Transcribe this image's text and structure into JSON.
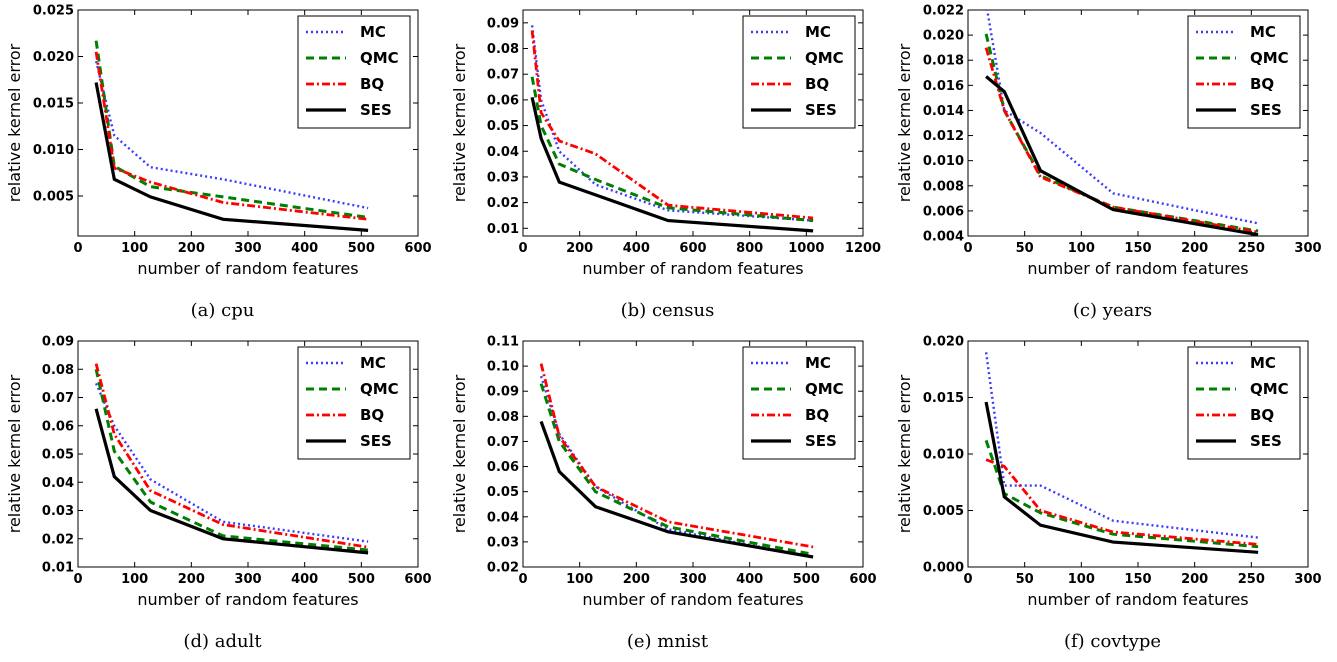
{
  "chart_data": [
    {
      "type": "line",
      "caption": "(a) cpu",
      "xlabel": "number of random features",
      "ylabel": "relative kernel error",
      "xlim": [
        0,
        600
      ],
      "ylim": [
        0.0007,
        0.025
      ],
      "xticks": [
        0,
        100,
        200,
        300,
        400,
        500,
        600
      ],
      "yticks": [
        0.005,
        0.01,
        0.015,
        0.02,
        0.025
      ],
      "ytick_labels": [
        "0.005",
        "0.010",
        "0.015",
        "0.020",
        "0.025"
      ],
      "legend": "top-right",
      "series": [
        {
          "name": "MC",
          "x": [
            32,
            64,
            128,
            256,
            512
          ],
          "values": [
            0.0195,
            0.0115,
            0.0081,
            0.0068,
            0.0037
          ]
        },
        {
          "name": "QMC",
          "x": [
            32,
            64,
            128,
            256,
            512
          ],
          "values": [
            0.0217,
            0.0082,
            0.006,
            0.0049,
            0.0027
          ]
        },
        {
          "name": "BQ",
          "x": [
            32,
            64,
            128,
            256,
            512
          ],
          "values": [
            0.0205,
            0.008,
            0.0065,
            0.0043,
            0.0025
          ]
        },
        {
          "name": "SES",
          "x": [
            32,
            64,
            128,
            256,
            512
          ],
          "values": [
            0.0172,
            0.0068,
            0.0049,
            0.0025,
            0.0013
          ]
        }
      ]
    },
    {
      "type": "line",
      "caption": "(b) census",
      "xlabel": "number of random features",
      "ylabel": "relative kernel error",
      "xlim": [
        0,
        1200
      ],
      "ylim": [
        0.007,
        0.095
      ],
      "xticks": [
        0,
        200,
        400,
        600,
        800,
        1000,
        1200
      ],
      "yticks": [
        0.01,
        0.02,
        0.03,
        0.04,
        0.05,
        0.06,
        0.07,
        0.08,
        0.09
      ],
      "ytick_labels": [
        "0.01",
        "0.02",
        "0.03",
        "0.04",
        "0.05",
        "0.06",
        "0.07",
        "0.08",
        "0.09"
      ],
      "legend": "top-right",
      "series": [
        {
          "name": "MC",
          "x": [
            32,
            64,
            128,
            256,
            512,
            1024
          ],
          "values": [
            0.089,
            0.06,
            0.04,
            0.027,
            0.017,
            0.013
          ]
        },
        {
          "name": "QMC",
          "x": [
            32,
            64,
            128,
            256,
            512,
            1024
          ],
          "values": [
            0.069,
            0.05,
            0.035,
            0.029,
            0.018,
            0.013
          ]
        },
        {
          "name": "BQ",
          "x": [
            32,
            64,
            128,
            256,
            512,
            1024
          ],
          "values": [
            0.087,
            0.055,
            0.044,
            0.039,
            0.019,
            0.014
          ]
        },
        {
          "name": "SES",
          "x": [
            32,
            64,
            128,
            256,
            512,
            1024
          ],
          "values": [
            0.061,
            0.045,
            0.028,
            0.023,
            0.013,
            0.009
          ]
        }
      ]
    },
    {
      "type": "line",
      "caption": "(c) years",
      "xlabel": "number of random features",
      "ylabel": "relative kernel error",
      "xlim": [
        0,
        300
      ],
      "ylim": [
        0.004,
        0.022
      ],
      "xticks": [
        0,
        50,
        100,
        150,
        200,
        250,
        300
      ],
      "yticks": [
        0.004,
        0.006,
        0.008,
        0.01,
        0.012,
        0.014,
        0.016,
        0.018,
        0.02,
        0.022
      ],
      "ytick_labels": [
        "0.004",
        "0.006",
        "0.008",
        "0.010",
        "0.012",
        "0.014",
        "0.016",
        "0.018",
        "0.020",
        "0.022"
      ],
      "legend": "top-right",
      "series": [
        {
          "name": "MC",
          "x": [
            16,
            32,
            64,
            128,
            256
          ],
          "values": [
            0.0225,
            0.014,
            0.0122,
            0.0074,
            0.005
          ]
        },
        {
          "name": "QMC",
          "x": [
            16,
            32,
            64,
            128,
            256
          ],
          "values": [
            0.0201,
            0.014,
            0.0088,
            0.0063,
            0.0044
          ]
        },
        {
          "name": "BQ",
          "x": [
            16,
            32,
            64,
            128,
            256
          ],
          "values": [
            0.019,
            0.014,
            0.0087,
            0.0063,
            0.0043
          ]
        },
        {
          "name": "SES",
          "x": [
            16,
            32,
            64,
            128,
            256
          ],
          "values": [
            0.0167,
            0.0155,
            0.0092,
            0.0061,
            0.0041
          ]
        }
      ]
    },
    {
      "type": "line",
      "caption": "(d) adult",
      "xlabel": "number of random features",
      "ylabel": "relative kernel error",
      "xlim": [
        0,
        600
      ],
      "ylim": [
        0.01,
        0.09
      ],
      "xticks": [
        0,
        100,
        200,
        300,
        400,
        500,
        600
      ],
      "yticks": [
        0.01,
        0.02,
        0.03,
        0.04,
        0.05,
        0.06,
        0.07,
        0.08,
        0.09
      ],
      "ytick_labels": [
        "0.01",
        "0.02",
        "0.03",
        "0.04",
        "0.05",
        "0.06",
        "0.07",
        "0.08",
        "0.09"
      ],
      "legend": "top-right",
      "series": [
        {
          "name": "MC",
          "x": [
            32,
            64,
            128,
            256,
            512
          ],
          "values": [
            0.075,
            0.06,
            0.041,
            0.026,
            0.019
          ]
        },
        {
          "name": "QMC",
          "x": [
            32,
            64,
            128,
            256,
            512
          ],
          "values": [
            0.08,
            0.051,
            0.033,
            0.021,
            0.016
          ]
        },
        {
          "name": "BQ",
          "x": [
            32,
            64,
            128,
            256,
            512
          ],
          "values": [
            0.082,
            0.057,
            0.037,
            0.025,
            0.017
          ]
        },
        {
          "name": "SES",
          "x": [
            32,
            64,
            128,
            256,
            512
          ],
          "values": [
            0.066,
            0.042,
            0.03,
            0.02,
            0.015
          ]
        }
      ]
    },
    {
      "type": "line",
      "caption": "(e) mnist",
      "xlabel": "number of random features",
      "ylabel": "relative kernel error",
      "xlim": [
        0,
        600
      ],
      "ylim": [
        0.02,
        0.11
      ],
      "xticks": [
        0,
        100,
        200,
        300,
        400,
        500,
        600
      ],
      "yticks": [
        0.02,
        0.03,
        0.04,
        0.05,
        0.06,
        0.07,
        0.08,
        0.09,
        0.1,
        0.11
      ],
      "ytick_labels": [
        "0.02",
        "0.03",
        "0.04",
        "0.05",
        "0.06",
        "0.07",
        "0.08",
        "0.09",
        "0.10",
        "0.11"
      ],
      "legend": "top-right",
      "series": [
        {
          "name": "MC",
          "x": [
            32,
            64,
            128,
            256,
            512
          ],
          "values": [
            0.096,
            0.073,
            0.052,
            0.035,
            0.024
          ]
        },
        {
          "name": "QMC",
          "x": [
            32,
            64,
            128,
            256,
            512
          ],
          "values": [
            0.093,
            0.07,
            0.05,
            0.036,
            0.025
          ]
        },
        {
          "name": "BQ",
          "x": [
            32,
            64,
            128,
            256,
            512
          ],
          "values": [
            0.101,
            0.072,
            0.052,
            0.038,
            0.028
          ]
        },
        {
          "name": "SES",
          "x": [
            32,
            64,
            128,
            256,
            512
          ],
          "values": [
            0.078,
            0.058,
            0.044,
            0.034,
            0.024
          ]
        }
      ]
    },
    {
      "type": "line",
      "caption": "(f) covtype",
      "xlabel": "number of random features",
      "ylabel": "relative kernel error",
      "xlim": [
        0,
        300
      ],
      "ylim": [
        0.0,
        0.02
      ],
      "xticks": [
        0,
        50,
        100,
        150,
        200,
        250,
        300
      ],
      "yticks": [
        0.0,
        0.005,
        0.01,
        0.015,
        0.02
      ],
      "ytick_labels": [
        "0.000",
        "0.005",
        "0.010",
        "0.015",
        "0.020"
      ],
      "legend": "top-right",
      "series": [
        {
          "name": "MC",
          "x": [
            16,
            32,
            64,
            128,
            256
          ],
          "values": [
            0.019,
            0.0072,
            0.0072,
            0.0041,
            0.0026
          ]
        },
        {
          "name": "QMC",
          "x": [
            16,
            32,
            64,
            128,
            256
          ],
          "values": [
            0.0112,
            0.0065,
            0.0048,
            0.0029,
            0.0018
          ]
        },
        {
          "name": "BQ",
          "x": [
            16,
            32,
            64,
            128,
            256
          ],
          "values": [
            0.0095,
            0.0089,
            0.005,
            0.0031,
            0.002
          ]
        },
        {
          "name": "SES",
          "x": [
            16,
            32,
            64,
            128,
            256
          ],
          "values": [
            0.0146,
            0.0062,
            0.0037,
            0.0022,
            0.0013
          ]
        }
      ]
    }
  ],
  "series_styles": {
    "MC": {
      "color": "#3b3bff"
    },
    "QMC": {
      "color": "#008000"
    },
    "BQ": {
      "color": "#ff0000"
    },
    "SES": {
      "color": "#000000"
    }
  }
}
